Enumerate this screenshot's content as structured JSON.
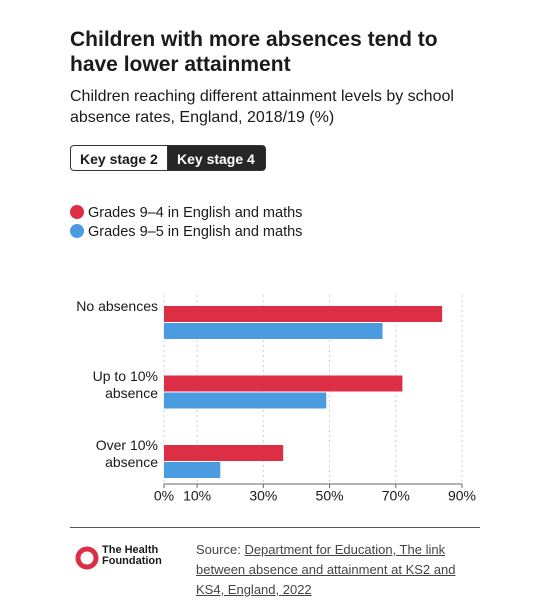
{
  "chart_data": {
    "type": "bar",
    "orientation": "horizontal",
    "title": "Children with more absences tend to have lower attainment",
    "subtitle": "Children reaching different attainment levels by school absence rates, England, 2018/19 (%)",
    "tabs": [
      "Key stage 2",
      "Key stage 4"
    ],
    "categories": [
      "No absences",
      "Up to 10% absence",
      "Over 10% absence"
    ],
    "series": [
      {
        "name": "Grades 9–4 in English and maths",
        "color": "#dc2f45",
        "values": [
          84,
          72,
          36
        ]
      },
      {
        "name": "Grades 9–5 in English and maths",
        "color": "#4a9be0",
        "values": [
          66,
          49,
          17
        ]
      }
    ],
    "xlim": [
      0,
      90
    ],
    "xticks": [
      {
        "value": 0,
        "label": "0%"
      },
      {
        "value": 10,
        "label": "10%"
      },
      {
        "value": 30,
        "label": "30%"
      },
      {
        "value": 50,
        "label": "50%"
      },
      {
        "value": 70,
        "label": "70%"
      },
      {
        "value": 90,
        "label": "90%"
      }
    ],
    "grid": true,
    "source_label": "Source:",
    "source_link": "Department for Education, The link between absence and attainment at KS2 and KS4, England, 2022",
    "logo": "The Health Foundation"
  }
}
